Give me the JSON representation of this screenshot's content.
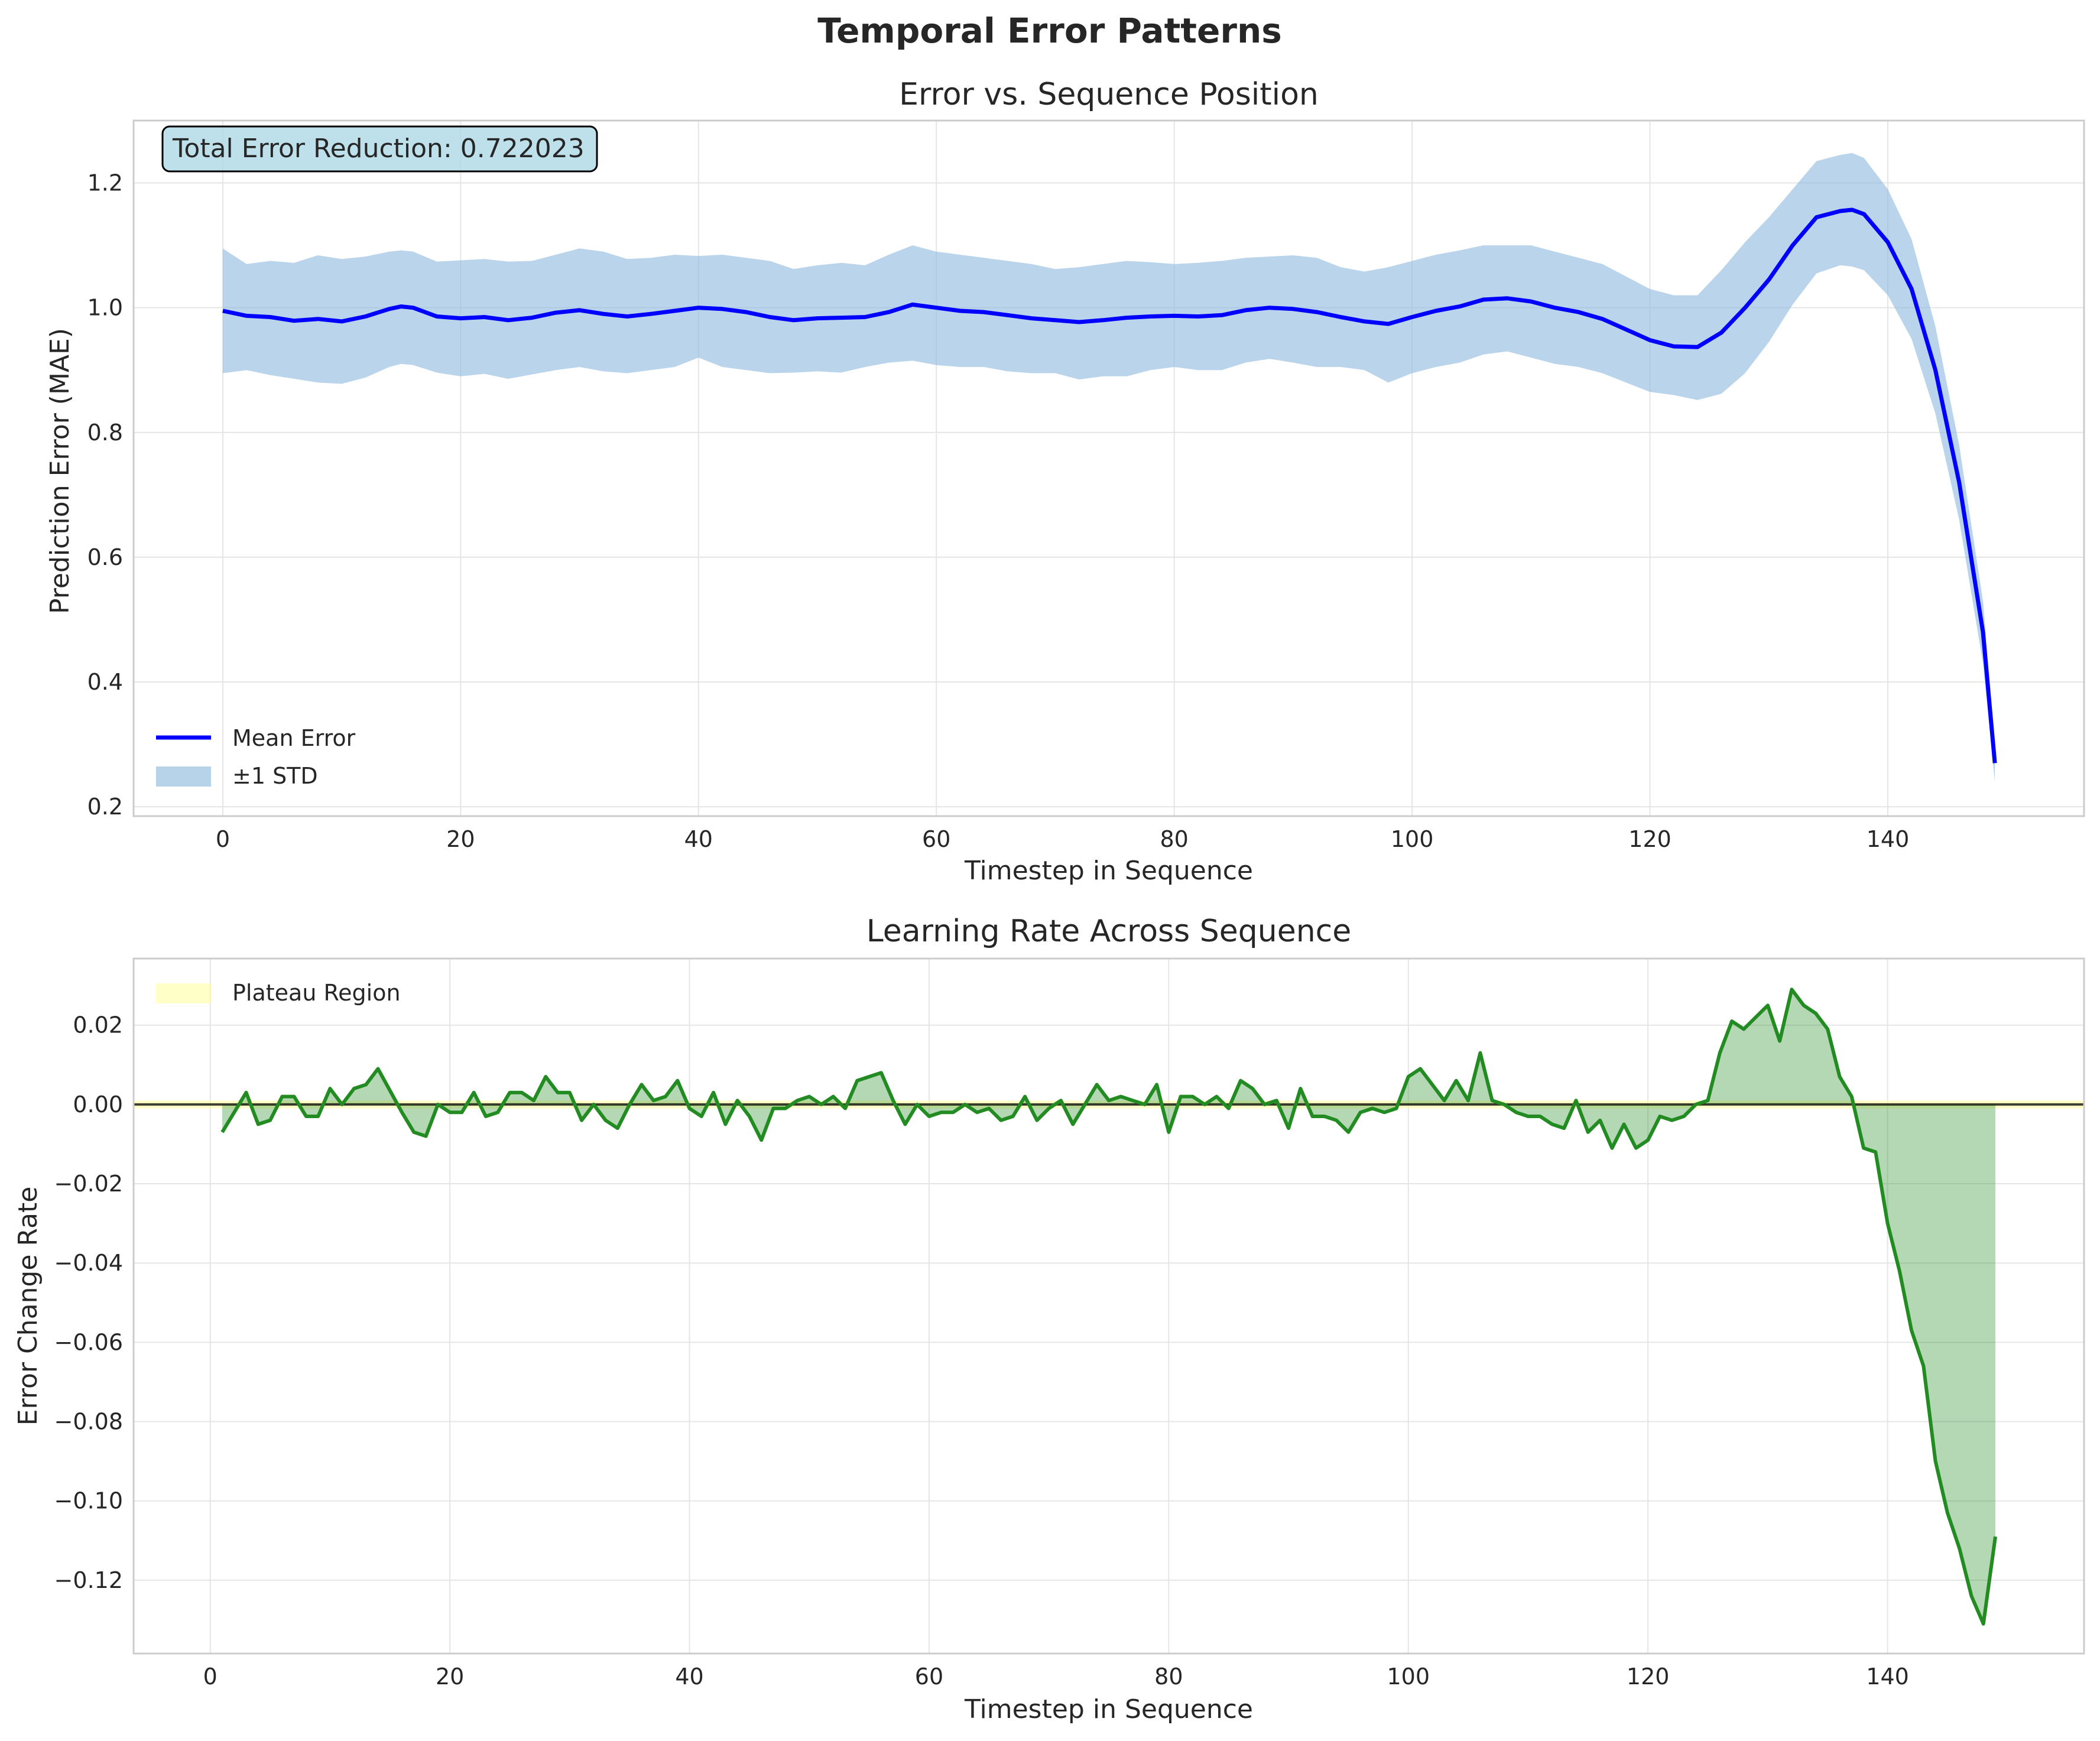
{
  "figure_title": "Temporal Error Patterns",
  "chart_data": [
    {
      "type": "line",
      "title": "Error vs. Sequence Position",
      "xlabel": "Timestep in Sequence",
      "ylabel": "Prediction Error (MAE)",
      "xlim": [
        -7.5,
        156.5
      ],
      "ylim": [
        0.185,
        1.3
      ],
      "xticks": [
        0,
        20,
        40,
        60,
        80,
        100,
        120,
        140
      ],
      "yticks": [
        0.2,
        0.4,
        0.6,
        0.8,
        1.0,
        1.2
      ],
      "xtick_labels": [
        "0",
        "20",
        "40",
        "60",
        "80",
        "100",
        "120",
        "140"
      ],
      "ytick_labels": [
        "0.2",
        "0.4",
        "0.6",
        "0.8",
        "1.0",
        "1.2"
      ],
      "grid": true,
      "legend_position": "lower-left",
      "annotation": "Total Error Reduction: 0.722023",
      "series": [
        {
          "name": "Mean Error",
          "color": "#0000ff",
          "x": [
            0,
            2,
            4,
            6,
            8,
            10,
            12,
            14,
            15,
            16,
            18,
            20,
            22,
            24,
            26,
            28,
            30,
            32,
            34,
            36,
            38,
            40,
            42,
            44,
            46,
            48,
            50,
            52,
            54,
            56,
            58,
            60,
            62,
            64,
            66,
            68,
            70,
            72,
            74,
            76,
            78,
            80,
            82,
            84,
            86,
            88,
            90,
            92,
            94,
            96,
            98,
            100,
            102,
            104,
            106,
            108,
            110,
            112,
            114,
            116,
            118,
            120,
            122,
            124,
            126,
            128,
            130,
            132,
            134,
            136,
            137,
            138,
            140,
            142,
            144,
            146,
            148,
            149
          ],
          "values": [
            0.995,
            0.987,
            0.985,
            0.979,
            0.982,
            0.978,
            0.986,
            0.998,
            1.002,
            1.0,
            0.986,
            0.983,
            0.985,
            0.98,
            0.984,
            0.992,
            0.996,
            0.99,
            0.986,
            0.99,
            0.995,
            1.0,
            0.998,
            0.993,
            0.985,
            0.98,
            0.983,
            0.984,
            0.985,
            0.993,
            1.005,
            1.0,
            0.995,
            0.993,
            0.988,
            0.983,
            0.98,
            0.977,
            0.98,
            0.984,
            0.986,
            0.987,
            0.986,
            0.988,
            0.996,
            1.0,
            0.998,
            0.993,
            0.985,
            0.978,
            0.974,
            0.985,
            0.995,
            1.002,
            1.013,
            1.015,
            1.01,
            1.0,
            0.993,
            0.982,
            0.965,
            0.948,
            0.938,
            0.937,
            0.96,
            1.0,
            1.045,
            1.1,
            1.145,
            1.155,
            1.157,
            1.15,
            1.105,
            1.03,
            0.9,
            0.72,
            0.48,
            0.27
          ]
        },
        {
          "name": "±1 STD",
          "type": "band",
          "color": "#8fbbde",
          "lower": [
            0.895,
            0.9,
            0.892,
            0.886,
            0.88,
            0.878,
            0.888,
            0.905,
            0.91,
            0.908,
            0.896,
            0.89,
            0.894,
            0.886,
            0.893,
            0.9,
            0.905,
            0.898,
            0.895,
            0.9,
            0.905,
            0.92,
            0.905,
            0.9,
            0.895,
            0.896,
            0.898,
            0.896,
            0.905,
            0.912,
            0.915,
            0.908,
            0.905,
            0.905,
            0.898,
            0.895,
            0.895,
            0.885,
            0.89,
            0.89,
            0.9,
            0.905,
            0.9,
            0.9,
            0.912,
            0.918,
            0.912,
            0.905,
            0.905,
            0.9,
            0.88,
            0.895,
            0.905,
            0.912,
            0.925,
            0.93,
            0.92,
            0.91,
            0.905,
            0.895,
            0.88,
            0.865,
            0.86,
            0.852,
            0.862,
            0.895,
            0.945,
            1.005,
            1.055,
            1.068,
            1.066,
            1.06,
            1.02,
            0.95,
            0.83,
            0.66,
            0.43,
            0.24
          ],
          "upper": [
            1.095,
            1.07,
            1.075,
            1.072,
            1.084,
            1.078,
            1.082,
            1.09,
            1.092,
            1.09,
            1.074,
            1.076,
            1.078,
            1.074,
            1.075,
            1.085,
            1.095,
            1.09,
            1.078,
            1.08,
            1.085,
            1.083,
            1.085,
            1.08,
            1.075,
            1.062,
            1.068,
            1.072,
            1.068,
            1.085,
            1.1,
            1.09,
            1.085,
            1.08,
            1.075,
            1.07,
            1.062,
            1.065,
            1.07,
            1.075,
            1.073,
            1.07,
            1.072,
            1.075,
            1.08,
            1.082,
            1.084,
            1.08,
            1.065,
            1.058,
            1.065,
            1.075,
            1.085,
            1.092,
            1.1,
            1.1,
            1.1,
            1.09,
            1.08,
            1.07,
            1.05,
            1.03,
            1.02,
            1.02,
            1.06,
            1.105,
            1.145,
            1.19,
            1.235,
            1.245,
            1.248,
            1.24,
            1.19,
            1.11,
            0.97,
            0.78,
            0.53,
            0.3
          ]
        }
      ]
    },
    {
      "type": "area",
      "title": "Learning Rate Across Sequence",
      "xlabel": "Timestep in Sequence",
      "ylabel": "Error Change Rate",
      "xlim": [
        -6.4,
        156.4
      ],
      "ylim": [
        -0.1385,
        0.0368
      ],
      "xticks": [
        0,
        20,
        40,
        60,
        80,
        100,
        120,
        140
      ],
      "yticks": [
        0.02,
        0.0,
        -0.02,
        -0.04,
        -0.06,
        -0.08,
        -0.1,
        -0.12
      ],
      "xtick_labels": [
        "0",
        "20",
        "40",
        "60",
        "80",
        "100",
        "120",
        "140"
      ],
      "ytick_labels": [
        "0.02",
        "0.00",
        "−0.02",
        "−0.04",
        "−0.06",
        "−0.08",
        "−0.10",
        "−0.12"
      ],
      "grid": true,
      "legend_position": "upper-left",
      "plateau_band": [
        -0.001,
        0.001
      ],
      "series": [
        {
          "name": "",
          "color": "#228b22",
          "x": [
            1,
            3,
            4,
            5,
            6,
            7,
            8,
            9,
            10,
            11,
            12,
            13,
            14,
            16,
            17,
            18,
            19,
            20,
            21,
            22,
            23,
            24,
            25,
            26,
            27,
            28,
            29,
            30,
            31,
            32,
            33,
            34,
            35,
            36,
            37,
            38,
            39,
            40,
            41,
            42,
            43,
            44,
            45,
            46,
            47,
            48,
            49,
            50,
            51,
            52,
            53,
            54,
            55,
            56,
            57,
            58,
            59,
            60,
            61,
            62,
            63,
            64,
            65,
            66,
            67,
            68,
            69,
            70,
            71,
            72,
            73,
            74,
            75,
            76,
            77,
            78,
            79,
            80,
            81,
            82,
            83,
            84,
            85,
            86,
            87,
            88,
            89,
            90,
            91,
            92,
            93,
            94,
            95,
            96,
            97,
            98,
            99,
            100,
            101,
            102,
            103,
            104,
            105,
            106,
            107,
            108,
            109,
            110,
            111,
            112,
            113,
            114,
            115,
            116,
            117,
            118,
            119,
            120,
            121,
            122,
            123,
            124,
            125,
            126,
            127,
            128,
            129,
            130,
            131,
            132,
            133,
            134,
            135,
            136,
            137,
            138,
            139,
            140,
            141,
            142,
            143,
            144,
            145,
            146,
            147,
            148,
            149
          ],
          "values": [
            -0.007,
            0.003,
            -0.005,
            -0.004,
            0.002,
            0.002,
            -0.003,
            -0.003,
            0.004,
            0.0,
            0.004,
            0.005,
            0.009,
            -0.002,
            -0.007,
            -0.008,
            0.0,
            -0.002,
            -0.002,
            0.003,
            -0.003,
            -0.002,
            0.003,
            0.003,
            0.001,
            0.007,
            0.003,
            0.003,
            -0.004,
            0.0,
            -0.004,
            -0.006,
            0.0,
            0.005,
            0.001,
            0.002,
            0.006,
            -0.001,
            -0.003,
            0.003,
            -0.005,
            0.001,
            -0.003,
            -0.009,
            -0.001,
            -0.001,
            0.001,
            0.002,
            0.0,
            0.002,
            -0.001,
            0.006,
            0.007,
            0.008,
            0.001,
            -0.005,
            0.0,
            -0.003,
            -0.002,
            -0.002,
            0.0,
            -0.002,
            -0.001,
            -0.004,
            -0.003,
            0.002,
            -0.004,
            -0.001,
            0.001,
            -0.005,
            0.0,
            0.005,
            0.001,
            0.002,
            0.001,
            0.0,
            0.005,
            -0.007,
            0.002,
            0.002,
            0.0,
            0.002,
            -0.001,
            0.006,
            0.004,
            0.0,
            0.001,
            -0.006,
            0.004,
            -0.003,
            -0.003,
            -0.004,
            -0.007,
            -0.002,
            -0.001,
            -0.002,
            -0.001,
            0.007,
            0.009,
            0.005,
            0.001,
            0.006,
            0.001,
            0.013,
            0.001,
            0.0,
            -0.002,
            -0.003,
            -0.003,
            -0.005,
            -0.006,
            0.001,
            -0.007,
            -0.004,
            -0.011,
            -0.005,
            -0.011,
            -0.009,
            -0.003,
            -0.004,
            -0.003,
            0.0,
            0.001,
            0.013,
            0.021,
            0.019,
            0.022,
            0.025,
            0.016,
            0.029,
            0.025,
            0.023,
            0.019,
            0.007,
            0.002,
            -0.011,
            -0.012,
            -0.03,
            -0.042,
            -0.057,
            -0.066,
            -0.09,
            -0.103,
            -0.112,
            -0.124,
            -0.131,
            -0.109
          ]
        },
        {
          "name": "Plateau Region",
          "type": "band",
          "color": "#ffff99"
        }
      ]
    }
  ],
  "colors": {
    "axes_edge": "#cccccc",
    "grid": "#e5e5e5",
    "zero_line": "#000000",
    "annotation_box": "#add8e6",
    "fill_green": "#228b22"
  }
}
